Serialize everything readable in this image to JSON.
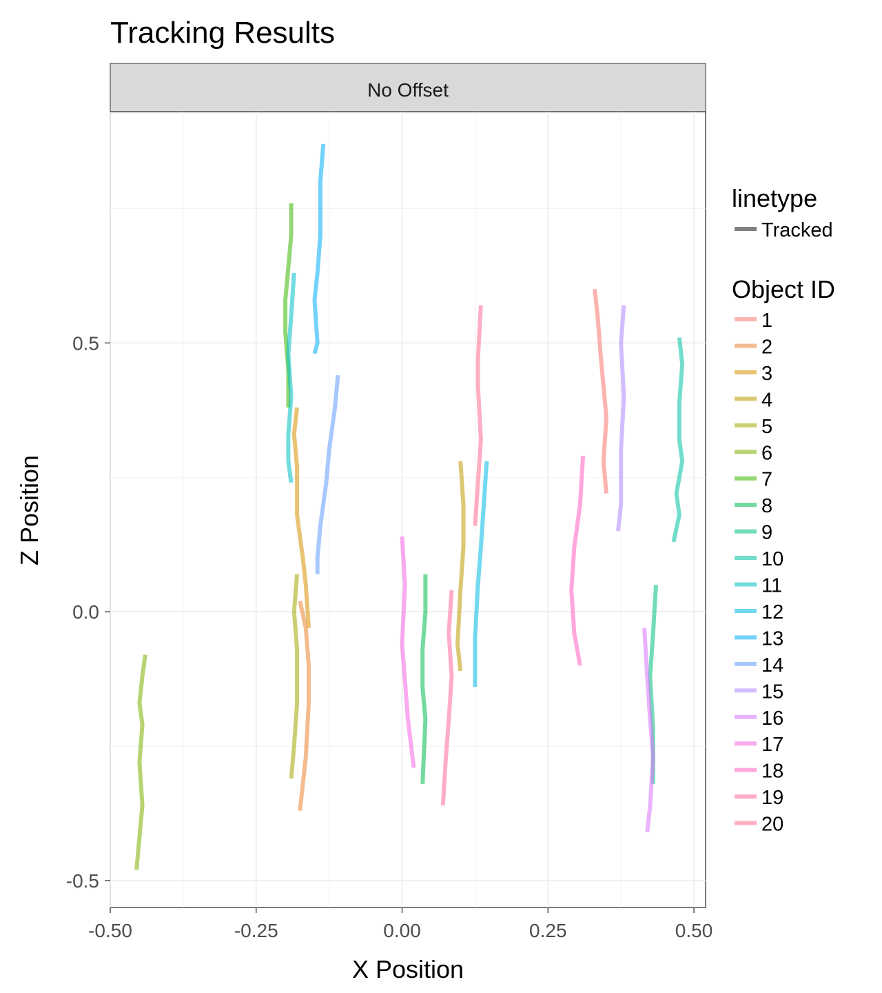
{
  "chart_data": {
    "type": "line",
    "title": "Tracking Results",
    "facet": "No Offset",
    "xlabel": "X Position",
    "ylabel": "Z Position",
    "xlim": [
      -0.5,
      0.52
    ],
    "ylim": [
      -0.55,
      0.93
    ],
    "x_ticks": [
      -0.5,
      -0.25,
      0.0,
      0.25,
      0.5
    ],
    "x_tick_labels": [
      "-0.50",
      "-0.25",
      "0.00",
      "0.25",
      "0.50"
    ],
    "y_ticks": [
      -0.5,
      0.0,
      0.5
    ],
    "y_tick_labels": [
      "-0.5",
      "0.0",
      "0.5"
    ],
    "grid": true,
    "legend_position": "right",
    "linetype_legend": {
      "title": "linetype",
      "entries": [
        "Tracked"
      ],
      "color": "#808080"
    },
    "color_legend_title": "Object ID",
    "series": [
      {
        "name": "1",
        "color": "#F8766D",
        "points": [
          [
            0.33,
            0.6
          ],
          [
            0.335,
            0.55
          ],
          [
            0.34,
            0.48
          ],
          [
            0.345,
            0.42
          ],
          [
            0.35,
            0.36
          ],
          [
            0.345,
            0.28
          ],
          [
            0.35,
            0.22
          ]
        ]
      },
      {
        "name": "2",
        "color": "#EA8331",
        "points": [
          [
            -0.175,
            0.02
          ],
          [
            -0.165,
            -0.03
          ],
          [
            -0.16,
            -0.1
          ],
          [
            -0.16,
            -0.17
          ],
          [
            -0.165,
            -0.27
          ],
          [
            -0.175,
            -0.37
          ]
        ]
      },
      {
        "name": "3",
        "color": "#D89000",
        "points": [
          [
            -0.18,
            0.38
          ],
          [
            -0.185,
            0.33
          ],
          [
            -0.18,
            0.27
          ],
          [
            -0.18,
            0.18
          ],
          [
            -0.17,
            0.1
          ],
          [
            -0.165,
            0.05
          ],
          [
            -0.16,
            -0.03
          ]
        ]
      },
      {
        "name": "4",
        "color": "#C09B00",
        "points": [
          [
            0.1,
            0.28
          ],
          [
            0.105,
            0.2
          ],
          [
            0.105,
            0.12
          ],
          [
            0.1,
            0.04
          ],
          [
            0.095,
            -0.06
          ],
          [
            0.1,
            -0.11
          ]
        ]
      },
      {
        "name": "5",
        "color": "#A3A500",
        "points": [
          [
            -0.18,
            0.07
          ],
          [
            -0.185,
            0.0
          ],
          [
            -0.18,
            -0.07
          ],
          [
            -0.18,
            -0.17
          ],
          [
            -0.185,
            -0.25
          ],
          [
            -0.19,
            -0.31
          ]
        ]
      },
      {
        "name": "6",
        "color": "#7CAE00",
        "points": [
          [
            -0.44,
            -0.08
          ],
          [
            -0.445,
            -0.12
          ],
          [
            -0.45,
            -0.17
          ],
          [
            -0.445,
            -0.21
          ],
          [
            -0.45,
            -0.28
          ],
          [
            -0.445,
            -0.36
          ],
          [
            -0.455,
            -0.48
          ]
        ]
      },
      {
        "name": "7",
        "color": "#39B600",
        "points": [
          [
            -0.19,
            0.76
          ],
          [
            -0.19,
            0.7
          ],
          [
            -0.195,
            0.64
          ],
          [
            -0.2,
            0.58
          ],
          [
            -0.2,
            0.52
          ],
          [
            -0.195,
            0.45
          ],
          [
            -0.195,
            0.38
          ]
        ]
      },
      {
        "name": "8",
        "color": "#00BB4E",
        "points": [
          [
            0.04,
            0.07
          ],
          [
            0.04,
            0.0
          ],
          [
            0.035,
            -0.07
          ],
          [
            0.035,
            -0.14
          ],
          [
            0.04,
            -0.2
          ],
          [
            0.035,
            -0.32
          ]
        ]
      },
      {
        "name": "9",
        "color": "#00BF7D",
        "points": [
          [
            0.435,
            0.05
          ],
          [
            0.43,
            -0.04
          ],
          [
            0.425,
            -0.12
          ],
          [
            0.43,
            -0.22
          ],
          [
            0.43,
            -0.32
          ]
        ]
      },
      {
        "name": "10",
        "color": "#00C1A3",
        "points": [
          [
            0.475,
            0.51
          ],
          [
            0.48,
            0.46
          ],
          [
            0.475,
            0.39
          ],
          [
            0.475,
            0.32
          ],
          [
            0.48,
            0.28
          ],
          [
            0.47,
            0.22
          ],
          [
            0.475,
            0.18
          ],
          [
            0.465,
            0.13
          ]
        ]
      },
      {
        "name": "11",
        "color": "#00BFC4",
        "points": [
          [
            -0.185,
            0.63
          ],
          [
            -0.19,
            0.55
          ],
          [
            -0.195,
            0.48
          ],
          [
            -0.19,
            0.4
          ],
          [
            -0.195,
            0.33
          ],
          [
            -0.195,
            0.28
          ],
          [
            -0.19,
            0.24
          ]
        ]
      },
      {
        "name": "12",
        "color": "#00B9E3",
        "points": [
          [
            0.145,
            0.28
          ],
          [
            0.14,
            0.2
          ],
          [
            0.135,
            0.12
          ],
          [
            0.13,
            0.05
          ],
          [
            0.125,
            -0.05
          ],
          [
            0.125,
            -0.14
          ]
        ]
      },
      {
        "name": "13",
        "color": "#00ADFA",
        "points": [
          [
            -0.135,
            0.87
          ],
          [
            -0.14,
            0.8
          ],
          [
            -0.14,
            0.7
          ],
          [
            -0.145,
            0.63
          ],
          [
            -0.15,
            0.58
          ],
          [
            -0.145,
            0.5
          ],
          [
            -0.15,
            0.48
          ]
        ]
      },
      {
        "name": "14",
        "color": "#619CFF",
        "points": [
          [
            -0.11,
            0.44
          ],
          [
            -0.115,
            0.38
          ],
          [
            -0.125,
            0.3
          ],
          [
            -0.13,
            0.24
          ],
          [
            -0.14,
            0.16
          ],
          [
            -0.145,
            0.1
          ],
          [
            -0.145,
            0.07
          ]
        ]
      },
      {
        "name": "15",
        "color": "#AE87FF",
        "points": [
          [
            0.38,
            0.57
          ],
          [
            0.375,
            0.5
          ],
          [
            0.38,
            0.4
          ],
          [
            0.375,
            0.3
          ],
          [
            0.375,
            0.2
          ],
          [
            0.37,
            0.15
          ]
        ]
      },
      {
        "name": "16",
        "color": "#DB72FB",
        "points": [
          [
            0.415,
            -0.03
          ],
          [
            0.42,
            -0.12
          ],
          [
            0.425,
            -0.2
          ],
          [
            0.43,
            -0.27
          ],
          [
            0.425,
            -0.36
          ],
          [
            0.42,
            -0.41
          ]
        ]
      },
      {
        "name": "17",
        "color": "#F564E3",
        "points": [
          [
            0.0,
            0.14
          ],
          [
            0.005,
            0.05
          ],
          [
            0.0,
            -0.06
          ],
          [
            0.005,
            -0.13
          ],
          [
            0.01,
            -0.2
          ],
          [
            0.02,
            -0.29
          ]
        ]
      },
      {
        "name": "18",
        "color": "#FF61C3",
        "points": [
          [
            0.31,
            0.29
          ],
          [
            0.305,
            0.2
          ],
          [
            0.295,
            0.12
          ],
          [
            0.29,
            0.04
          ],
          [
            0.295,
            -0.04
          ],
          [
            0.305,
            -0.1
          ]
        ]
      },
      {
        "name": "19",
        "color": "#FF69A0",
        "points": [
          [
            0.085,
            0.04
          ],
          [
            0.08,
            -0.04
          ],
          [
            0.085,
            -0.12
          ],
          [
            0.08,
            -0.2
          ],
          [
            0.075,
            -0.27
          ],
          [
            0.07,
            -0.36
          ]
        ]
      },
      {
        "name": "20",
        "color": "#FF6C91",
        "points": [
          [
            0.135,
            0.57
          ],
          [
            0.13,
            0.47
          ],
          [
            0.13,
            0.42
          ],
          [
            0.135,
            0.32
          ],
          [
            0.13,
            0.24
          ],
          [
            0.125,
            0.16
          ]
        ]
      }
    ]
  }
}
